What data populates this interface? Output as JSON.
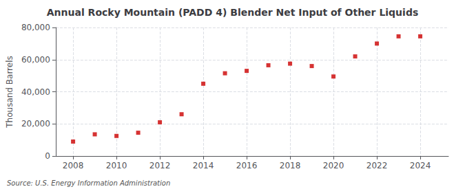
{
  "chart_data": {
    "type": "scatter",
    "title": "Annual Rocky Mountain (PADD 4) Blender Net Input of Other Liquids",
    "ylabel": "Thousand Barrels",
    "annotations": [
      "Source: U.S. Energy Information Administration"
    ],
    "x": [
      2008,
      2009,
      2010,
      2011,
      2012,
      2013,
      2014,
      2015,
      2016,
      2017,
      2018,
      2019,
      2020,
      2021,
      2022,
      2023,
      2024
    ],
    "values": [
      9000,
      13500,
      12500,
      14500,
      21000,
      26000,
      45000,
      51500,
      53000,
      56500,
      57500,
      56000,
      49500,
      62000,
      70000,
      74500,
      74500
    ],
    "color": "#cc0000",
    "marker": "square",
    "xlim": [
      2007.2,
      2025.3
    ],
    "xticks": [
      2008,
      2010,
      2012,
      2014,
      2016,
      2018,
      2020,
      2022,
      2024
    ],
    "ylim": [
      0,
      80000
    ],
    "yticks": [
      0,
      {
        "value": 20000,
        "label": "20,000"
      },
      {
        "value": 40000,
        "label": "40,000"
      },
      {
        "value": 60000,
        "label": "60,000"
      },
      {
        "value": 80000,
        "label": "80,000"
      }
    ],
    "grid": true
  }
}
